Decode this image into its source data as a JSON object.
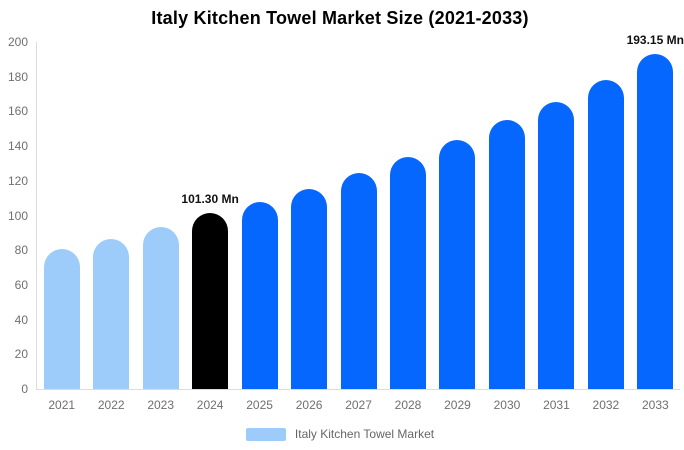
{
  "title": "Italy Kitchen Towel Market Size (2021-2033)",
  "colors": {
    "light_blue": "#9DCCFB",
    "blue": "#0567FD",
    "black": "#000000",
    "axis_line": "#DCDCDC",
    "tick_text": "#6F6F6F",
    "data_label_text": "#111111",
    "legend_text": "#666666",
    "background": "#FFFFFF"
  },
  "legend": {
    "label": "Italy Kitchen Towel Market",
    "swatch_color": "#9DCCFB"
  },
  "chart_data": {
    "type": "bar",
    "title": "Italy Kitchen Towel Market Size (2021-2033)",
    "categories": [
      "2021",
      "2022",
      "2023",
      "2024",
      "2025",
      "2026",
      "2027",
      "2028",
      "2029",
      "2030",
      "2031",
      "2032",
      "2033"
    ],
    "values": [
      80.5,
      86.5,
      93.5,
      101.3,
      108,
      115.5,
      124.5,
      134,
      143.5,
      155,
      165.5,
      178,
      193.15
    ],
    "bar_colors": [
      "light_blue",
      "light_blue",
      "light_blue",
      "black",
      "blue",
      "blue",
      "blue",
      "blue",
      "blue",
      "blue",
      "blue",
      "blue",
      "blue"
    ],
    "data_labels": [
      {
        "index": 3,
        "text": "101.30 Mn"
      },
      {
        "index": 12,
        "text": "193.15 Mn"
      }
    ],
    "xlabel": "",
    "ylabel": "",
    "ylim": [
      0,
      200
    ],
    "yticks": [
      0,
      20,
      40,
      60,
      80,
      100,
      120,
      140,
      160,
      180,
      200
    ],
    "grid": false,
    "legend_position": "bottom"
  }
}
